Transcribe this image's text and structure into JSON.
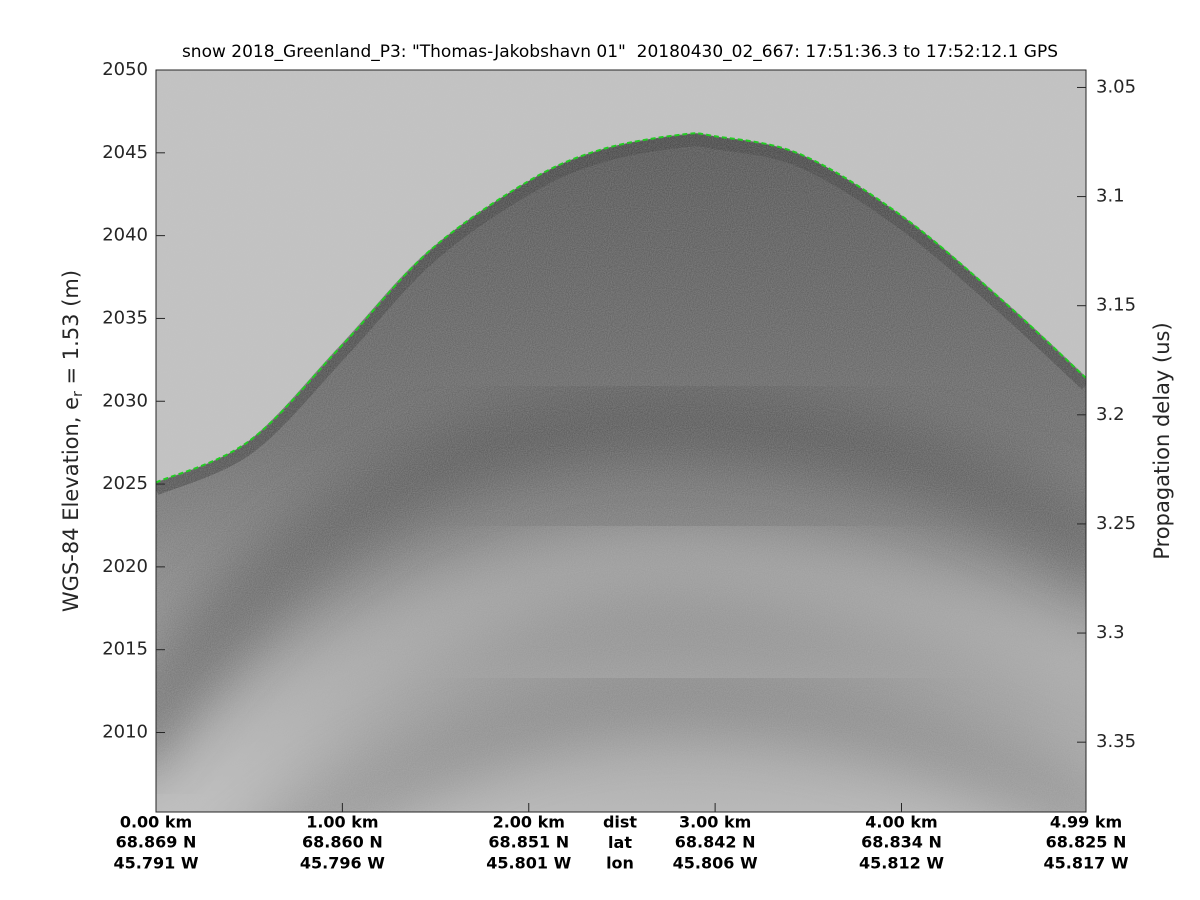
{
  "chart_data": {
    "type": "echogram",
    "title": "snow 2018_Greenland_P3: \"Thomas-Jakobshavn 01\"  20180430_02_667: 17:51:36.3 to 17:52:12.1 GPS",
    "ylabel": [
      "WGS-84 Elevation, e",
      "r",
      " = 1.53 (m)"
    ],
    "y2label": "Propagation delay (us)",
    "xlim": [
      0,
      4.99
    ],
    "xticks": [
      {
        "value": 0,
        "label": "0.00 km"
      },
      {
        "value": 1,
        "label": "1.00 km"
      },
      {
        "value": 2,
        "label": "2.00 km"
      },
      {
        "value": 3,
        "label": "3.00 km"
      },
      {
        "value": 4,
        "label": "4.00 km"
      },
      {
        "value": 4.99,
        "label": "4.99 km"
      }
    ],
    "xtick_lat": [
      "68.869 N",
      "68.860 N",
      "68.851 N",
      "68.842 N",
      "68.834 N",
      "68.825 N"
    ],
    "xtick_lon": [
      "45.791 W",
      "45.796 W",
      "45.801 W",
      "45.806 W",
      "45.812 W",
      "45.817 W"
    ],
    "xtick_row_labels": [
      "dist",
      "lat",
      "lon"
    ],
    "ylim": [
      2005.2,
      2050
    ],
    "yticks": [
      2010,
      2015,
      2020,
      2025,
      2030,
      2035,
      2040,
      2045,
      2050
    ],
    "y2lim": [
      3.382,
      3.042
    ],
    "y2ticks": [
      3.05,
      3.1,
      3.15,
      3.2,
      3.25,
      3.3,
      3.35
    ],
    "series": [
      {
        "color": "#22cc22",
        "x": [
          0,
          0.5,
          1,
          1.47,
          2,
          2.39,
          2.82,
          3,
          3.46,
          4,
          4.54,
          4.99
        ],
        "values": [
          2025.1,
          2027.6,
          2033.4,
          2039.1,
          2043.3,
          2045.2,
          2046.1,
          2046.0,
          2044.9,
          2041.2,
          2036.1,
          2031.4
        ]
      }
    ]
  }
}
